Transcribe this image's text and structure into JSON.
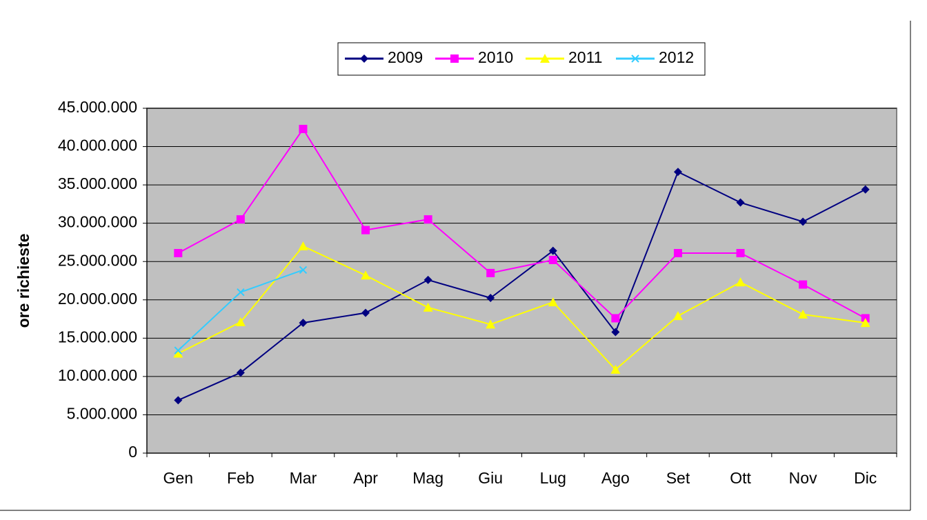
{
  "chart_data": {
    "type": "line",
    "y_label": "ore richieste",
    "categories": [
      "Gen",
      "Feb",
      "Mar",
      "Apr",
      "Mag",
      "Giu",
      "Lug",
      "Ago",
      "Set",
      "Ott",
      "Nov",
      "Dic"
    ],
    "series": [
      {
        "name": "2009",
        "color": "#000080",
        "marker": "diamond",
        "values": [
          6900000,
          10500000,
          17000000,
          18300000,
          22600000,
          20250000,
          26400000,
          15800000,
          36700000,
          32700000,
          30200000,
          34400000
        ]
      },
      {
        "name": "2010",
        "color": "#ff00ff",
        "marker": "square",
        "values": [
          26100000,
          30500000,
          42300000,
          29100000,
          30500000,
          23500000,
          25200000,
          17600000,
          26100000,
          26100000,
          22000000,
          17600000
        ]
      },
      {
        "name": "2011",
        "color": "#ffff00",
        "marker": "triangle",
        "values": [
          13000000,
          17100000,
          27000000,
          23200000,
          19000000,
          16800000,
          19700000,
          10900000,
          17900000,
          22300000,
          18100000,
          17000000
        ]
      },
      {
        "name": "2012",
        "color": "#33ccff",
        "marker": "x",
        "values": [
          13400000,
          21000000,
          23900000,
          null,
          null,
          null,
          null,
          null,
          null,
          null,
          null,
          null
        ]
      }
    ],
    "ylim": [
      0,
      45000000
    ],
    "yticks": [
      0,
      {
        "value": 5000000,
        "label": "5.000.000"
      },
      {
        "value": 10000000,
        "label": "10.000.000"
      },
      {
        "value": 15000000,
        "label": "15.000.000"
      },
      {
        "value": 20000000,
        "label": "20.000.000"
      },
      {
        "value": 25000000,
        "label": "25.000.000"
      },
      {
        "value": 30000000,
        "label": "30.000.000"
      },
      {
        "value": 35000000,
        "label": "35.000.000"
      },
      {
        "value": 40000000,
        "label": "40.000.000"
      },
      {
        "value": 45000000,
        "label": "45.000.000"
      }
    ],
    "grid": true,
    "plot_background": "#c0c0c0",
    "legend": "top"
  }
}
